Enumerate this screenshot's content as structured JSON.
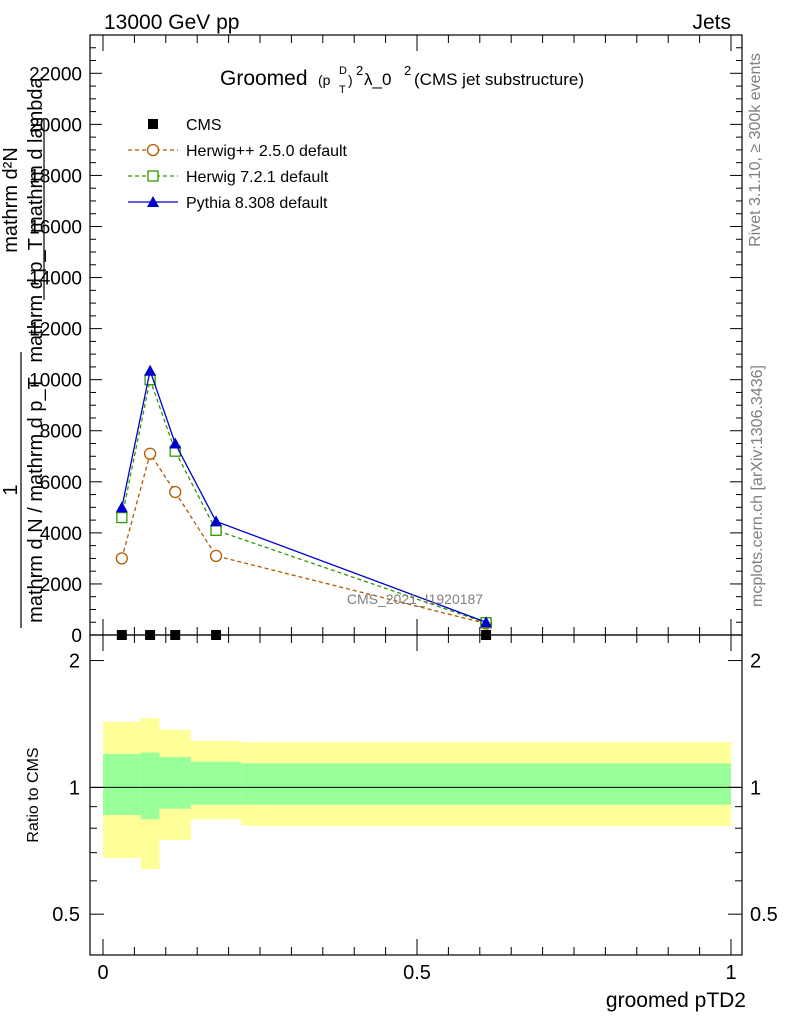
{
  "header": {
    "energy_label": "13000 GeV pp",
    "category_label": "Jets"
  },
  "side": {
    "rivet_label": "Rivet 3.1.10, ≥ 300k events",
    "mcplots_label": "mcplots.cern.ch [arXiv:1306.3436]"
  },
  "chart_data": {
    "type": "line",
    "title": "Groomed(p_T^D)^2 λ_0^2 (CMS jet substructure)",
    "title_parts": {
      "main": "Groomed",
      "open": "(p",
      "sup_d": "D",
      "sub_t": "T",
      "close": ")",
      "sup_2": "2",
      "lambda": " λ_0",
      "sup_2b": "2",
      "rest": " (CMS jet substructure)"
    },
    "ylabel": "1/mathrm d N / mathrm d p_T mathrm d^2N / mathrm d p_T mathrm d lambda",
    "ylabel_parts": {
      "numerator": "1",
      "top": "mathrm d²N",
      "mid": "mathrm d p_T mathrm d lambda",
      "bottom": "mathrm d N / mathrm d p_T"
    },
    "xlabel": "groomed pTD2",
    "ratio_ylabel": "Ratio to CMS",
    "watermark": "CMS_2021_I1920187",
    "xlim": [
      0,
      1
    ],
    "ylim": [
      0,
      23500
    ],
    "ratio_ylim": [
      0.4,
      2.3
    ],
    "y_ticks": [
      0,
      2000,
      4000,
      6000,
      8000,
      10000,
      12000,
      14000,
      16000,
      18000,
      20000,
      22000
    ],
    "x_ticks": [
      "0",
      "0.5",
      "1"
    ],
    "ratio_y_ticks": [
      "0.5",
      "1",
      "2"
    ],
    "legend_position": "top-left",
    "x": [
      0.03,
      0.075,
      0.115,
      0.18,
      0.61
    ],
    "series": [
      {
        "name": "CMS",
        "marker": "square-filled",
        "color": "#000000",
        "values": [
          0,
          0,
          0,
          0,
          0
        ]
      },
      {
        "name": "Herwig++ 2.5.0 default",
        "marker": "circle-open",
        "color": "#b35900",
        "dashed": true,
        "values": [
          3000,
          7100,
          5600,
          3100,
          450
        ]
      },
      {
        "name": "Herwig 7.2.1 default",
        "marker": "square-open",
        "color": "#339900",
        "dashed": true,
        "values": [
          4600,
          10000,
          7200,
          4100,
          480
        ]
      },
      {
        "name": "Pythia 8.308 default",
        "marker": "triangle-filled",
        "color": "#0000cc",
        "dashed": false,
        "values": [
          5000,
          10350,
          7500,
          4450,
          500
        ]
      }
    ],
    "ratio_bands": [
      {
        "x0": 0.0,
        "x1": 0.06,
        "inner": [
          0.86,
          1.2
        ],
        "outer": [
          0.68,
          1.43
        ]
      },
      {
        "x0": 0.06,
        "x1": 0.09,
        "inner": [
          0.84,
          1.21
        ],
        "outer": [
          0.64,
          1.46
        ]
      },
      {
        "x0": 0.09,
        "x1": 0.14,
        "inner": [
          0.89,
          1.18
        ],
        "outer": [
          0.75,
          1.37
        ]
      },
      {
        "x0": 0.14,
        "x1": 0.22,
        "inner": [
          0.91,
          1.15
        ],
        "outer": [
          0.84,
          1.29
        ]
      },
      {
        "x0": 0.22,
        "x1": 1.0,
        "inner": [
          0.91,
          1.14
        ],
        "outer": [
          0.81,
          1.28
        ]
      }
    ],
    "colors": {
      "inner_band": "#99ff99",
      "outer_band": "#ffff99"
    }
  }
}
